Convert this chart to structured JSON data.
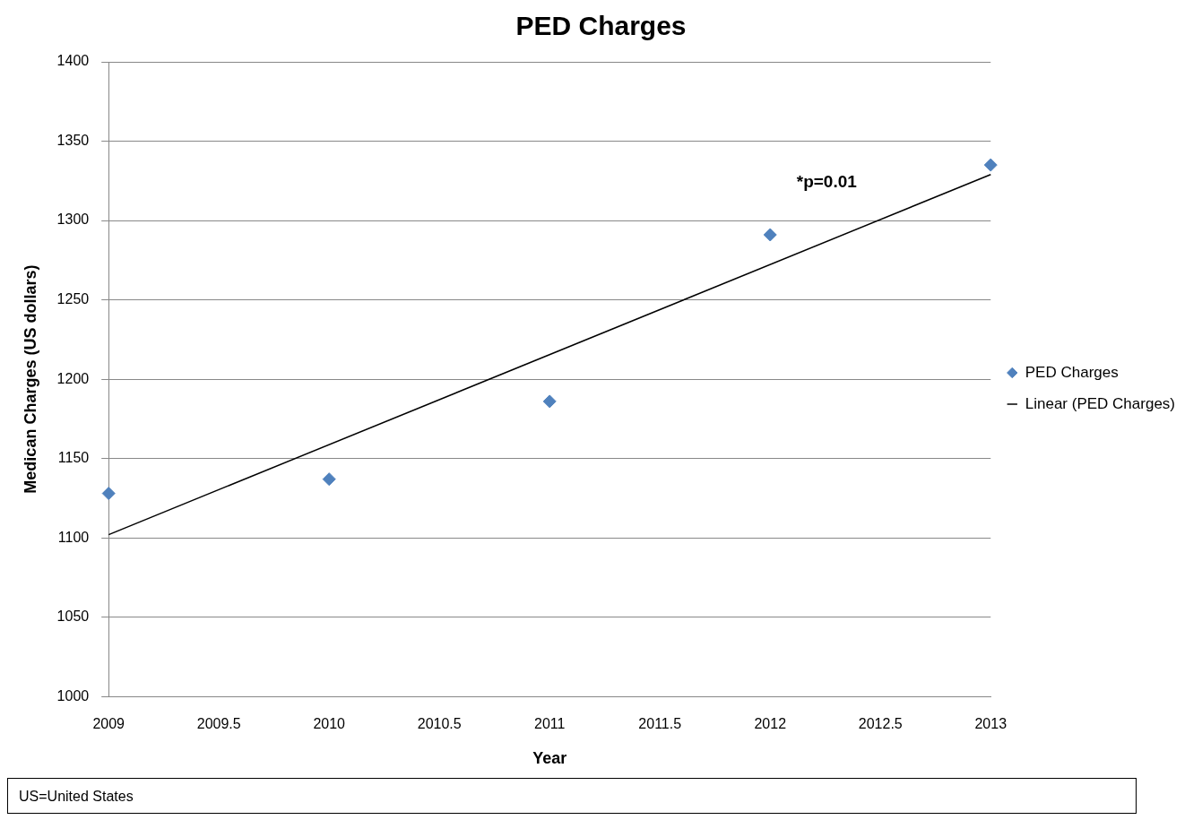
{
  "chart_data": {
    "type": "scatter",
    "title": "PED Charges",
    "xlabel": "Year",
    "ylabel": "Medican Charges (US dollars)",
    "x": [
      2009,
      2010,
      2011,
      2012,
      2013
    ],
    "series": [
      {
        "name": "PED Charges",
        "color": "#4f81bd",
        "values": [
          1128,
          1137,
          1186,
          1291,
          1335
        ],
        "marker": "diamond"
      },
      {
        "name": "Linear (PED Charges)",
        "type": "line",
        "color": "#000000",
        "x": [
          2009,
          2013
        ],
        "values": [
          1102,
          1329
        ],
        "marker": "none",
        "line_style": "solid"
      }
    ],
    "xlim": [
      2009,
      2013
    ],
    "xticks": [
      2009,
      2009.5,
      2010,
      2010.5,
      2011,
      2011.5,
      2012,
      2012.5,
      2013
    ],
    "ylim": [
      1000,
      1400
    ],
    "yticks": [
      1000,
      1050,
      1100,
      1150,
      1200,
      1250,
      1300,
      1350,
      1400
    ],
    "grid": "y",
    "legend": "right",
    "annotations": [
      "*p=0.01",
      "US=United States"
    ]
  }
}
